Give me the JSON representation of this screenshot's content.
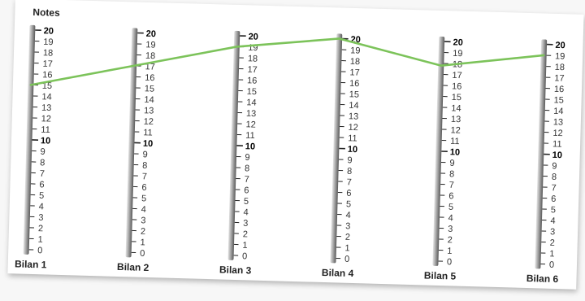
{
  "chart_data": {
    "type": "line",
    "title": "Notes",
    "categories": [
      "Bilan 1",
      "Bilan 2",
      "Bilan 3",
      "Bilan 4",
      "Bilan 5",
      "Bilan 6"
    ],
    "values": [
      15,
      17,
      19,
      20,
      17.8,
      19
    ],
    "ylim": [
      0,
      20
    ],
    "yticks": [
      0,
      1,
      2,
      3,
      4,
      5,
      6,
      7,
      8,
      9,
      10,
      11,
      12,
      13,
      14,
      15,
      16,
      17,
      18,
      19,
      20
    ],
    "major_ticks": [
      10,
      20
    ],
    "line_color": "#7cc35a",
    "grid": false,
    "legend": "none"
  }
}
